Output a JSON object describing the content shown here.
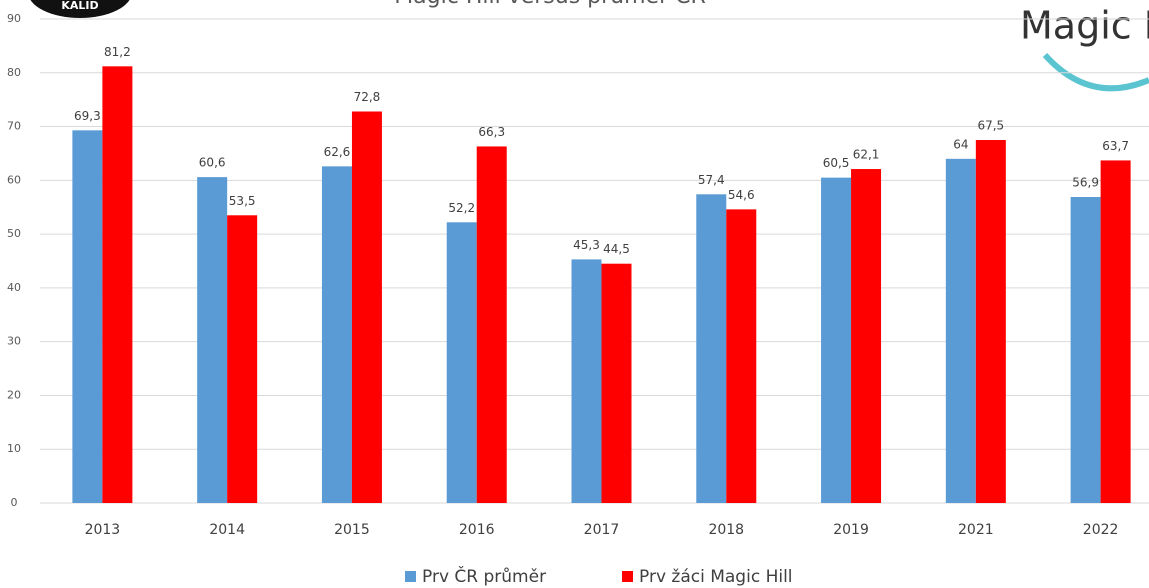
{
  "chart_data": {
    "type": "bar",
    "title": "Magic Hill versus průměr ČR",
    "logo_left": "KALID",
    "logo_right": "Magic Hill",
    "categories": [
      "2013",
      "2014",
      "2015",
      "2016",
      "2017",
      "2018",
      "2019",
      "2021",
      "2022"
    ],
    "series": [
      {
        "name": "Prv ČR průměr",
        "color": "#5b9bd5",
        "values": [
          69.3,
          60.6,
          62.6,
          52.2,
          45.3,
          57.4,
          60.5,
          64,
          56.9
        ],
        "value_labels": [
          "69,3",
          "60,6",
          "62,6",
          "52,2",
          "45,3",
          "57,4",
          "60,5",
          "64",
          "56,9"
        ]
      },
      {
        "name": "Prv žáci Magic Hill",
        "color": "#ff0000",
        "values": [
          81.2,
          53.5,
          72.8,
          66.3,
          44.5,
          54.6,
          62.1,
          67.5,
          63.7
        ],
        "value_labels": [
          "81,2",
          "53,5",
          "72,8",
          "66,3",
          "44,5",
          "54,6",
          "62,1",
          "67,5",
          "63,7"
        ]
      }
    ],
    "ylim": [
      0,
      90
    ],
    "yticks": [
      0,
      10,
      20,
      30,
      40,
      50,
      60,
      70,
      80,
      90
    ],
    "grid": true
  }
}
